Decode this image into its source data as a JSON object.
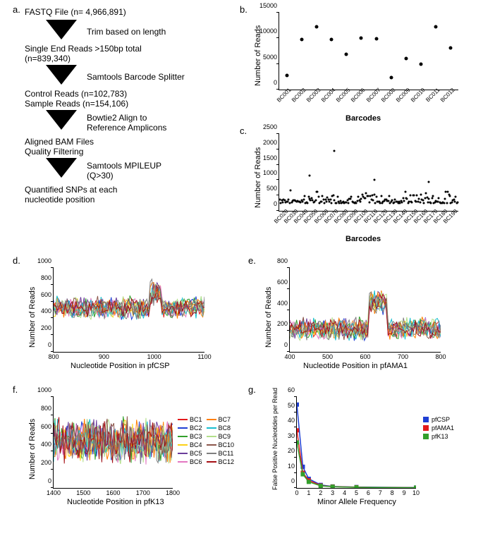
{
  "labels": {
    "a": "a.",
    "b": "b.",
    "c": "c.",
    "d": "d.",
    "e": "e.",
    "f": "f.",
    "g": "g."
  },
  "panel_a": {
    "lines": [
      "FASTQ File (n= 4,966,891)",
      "Trim based on length",
      "Single End Reads >150bp total",
      "(n=839,340)",
      "Samtools Barcode Splitter",
      "Control Reads (n=102,783)",
      "Sample Reads (n=154,106)",
      "Bowtie2 Align to",
      "Reference Amplicons",
      "Aligned BAM Files",
      "Quality Filtering",
      "Samtools MPILEUP",
      "(Q>30)",
      "Quantified SNPs at each",
      "nucleotide position"
    ]
  },
  "panel_b": {
    "ylabel": "Number of Reads",
    "xlabel": "Barcodes",
    "ylim": [
      0,
      15000
    ],
    "ytick_step": 5000,
    "categories": [
      "BC001",
      "BC002",
      "BC003",
      "BC004",
      "BC005",
      "BC006",
      "BC007",
      "BC008",
      "BC009",
      "BC010",
      "BC011",
      "BC012"
    ],
    "values": [
      2800,
      9800,
      12200,
      9800,
      6900,
      10000,
      9900,
      2400,
      6000,
      5000,
      12200,
      8100
    ],
    "dot_size": 5,
    "dot_color": "#000000"
  },
  "panel_c": {
    "ylabel": "Number of Reads",
    "xlabel": "Barcodes",
    "ylim": [
      0,
      2500
    ],
    "ytick_step": 500,
    "xticks": [
      "BC020",
      "BC030",
      "BC040",
      "BC050",
      "BC060",
      "BC070",
      "BC080",
      "BC090",
      "BC100",
      "BC110",
      "BC120",
      "BC130",
      "BC140",
      "BC150",
      "BC160",
      "BC170",
      "BC180",
      "BC190"
    ],
    "n_points": 180,
    "band_low": 250,
    "band_high": 700,
    "outliers": [
      [
        55,
        1950
      ],
      [
        30,
        1150
      ],
      [
        95,
        1000
      ],
      [
        150,
        950
      ]
    ],
    "dot_size": 3,
    "dot_color": "#000000"
  },
  "line_colors": {
    "BC1": "#e31a1c",
    "BC2": "#1f3fd4",
    "BC3": "#33a02c",
    "BC4": "#fcd116",
    "BC5": "#6a3d9a",
    "BC6": "#e377c2",
    "BC7": "#ff7f00",
    "BC8": "#17becf",
    "BC9": "#b2df8a",
    "BC10": "#8c564b",
    "BC11": "#7f7f7f",
    "BC12": "#a50f15"
  },
  "panel_d": {
    "ylabel": "Number of Reads",
    "xlabel": "Nucleotide Position in pfCSP",
    "ylim": [
      0,
      1000
    ],
    "ytick_step": 200,
    "xlim": [
      800,
      1100
    ],
    "xtick_step": 100,
    "band_low": 300,
    "band_high": 650,
    "peak_x": [
      990,
      1015
    ],
    "peak_h": 820
  },
  "panel_e": {
    "ylabel": "Number of Reads",
    "xlabel": "Nucleotide Position in pfAMA1",
    "ylim": [
      0,
      800
    ],
    "ytick_step": 200,
    "xlim": [
      400,
      800
    ],
    "xtick_step": 100,
    "band_low": 40,
    "band_high": 320,
    "peak_x": [
      610,
      660
    ],
    "peak_h": 560
  },
  "panel_f": {
    "ylabel": "Number of Reads",
    "xlabel": "Nucleotide Position in pfK13",
    "ylim": [
      0,
      1000
    ],
    "ytick_step": 200,
    "xlim": [
      1400,
      1800
    ],
    "xtick_step": 100,
    "band_low": 100,
    "band_high": 750,
    "legend": [
      "BC1",
      "BC2",
      "BC3",
      "BC4",
      "BC5",
      "BC6",
      "BC7",
      "BC8",
      "BC9",
      "BC10",
      "BC11",
      "BC12"
    ]
  },
  "panel_g": {
    "ylabel": "False Positive Nucleotides per Read",
    "xlabel": "Minor Allele Frequency",
    "ylim": [
      0,
      60
    ],
    "ytick_step": 10,
    "xlim": [
      0,
      10
    ],
    "xtick_step": 1,
    "series": {
      "pfCSP": {
        "color": "#1f3fd4",
        "points": [
          [
            0,
            55
          ],
          [
            0.5,
            14
          ],
          [
            1,
            6
          ],
          [
            2,
            2
          ],
          [
            3,
            1
          ],
          [
            5,
            0.6
          ],
          [
            10,
            0.3
          ]
        ]
      },
      "pfAMA1": {
        "color": "#e31a1c",
        "points": [
          [
            0,
            38
          ],
          [
            0.5,
            10
          ],
          [
            1,
            5
          ],
          [
            2,
            1.6
          ],
          [
            3,
            0.9
          ],
          [
            5,
            0.5
          ],
          [
            10,
            0.2
          ]
        ]
      },
      "pfK13": {
        "color": "#33a02c",
        "points": [
          [
            0,
            30
          ],
          [
            0.5,
            9
          ],
          [
            1,
            4
          ],
          [
            2,
            1.4
          ],
          [
            3,
            0.8
          ],
          [
            5,
            0.4
          ],
          [
            10,
            0.2
          ]
        ]
      }
    },
    "legend": [
      "pfCSP",
      "pfAMA1",
      "pfK13"
    ]
  }
}
